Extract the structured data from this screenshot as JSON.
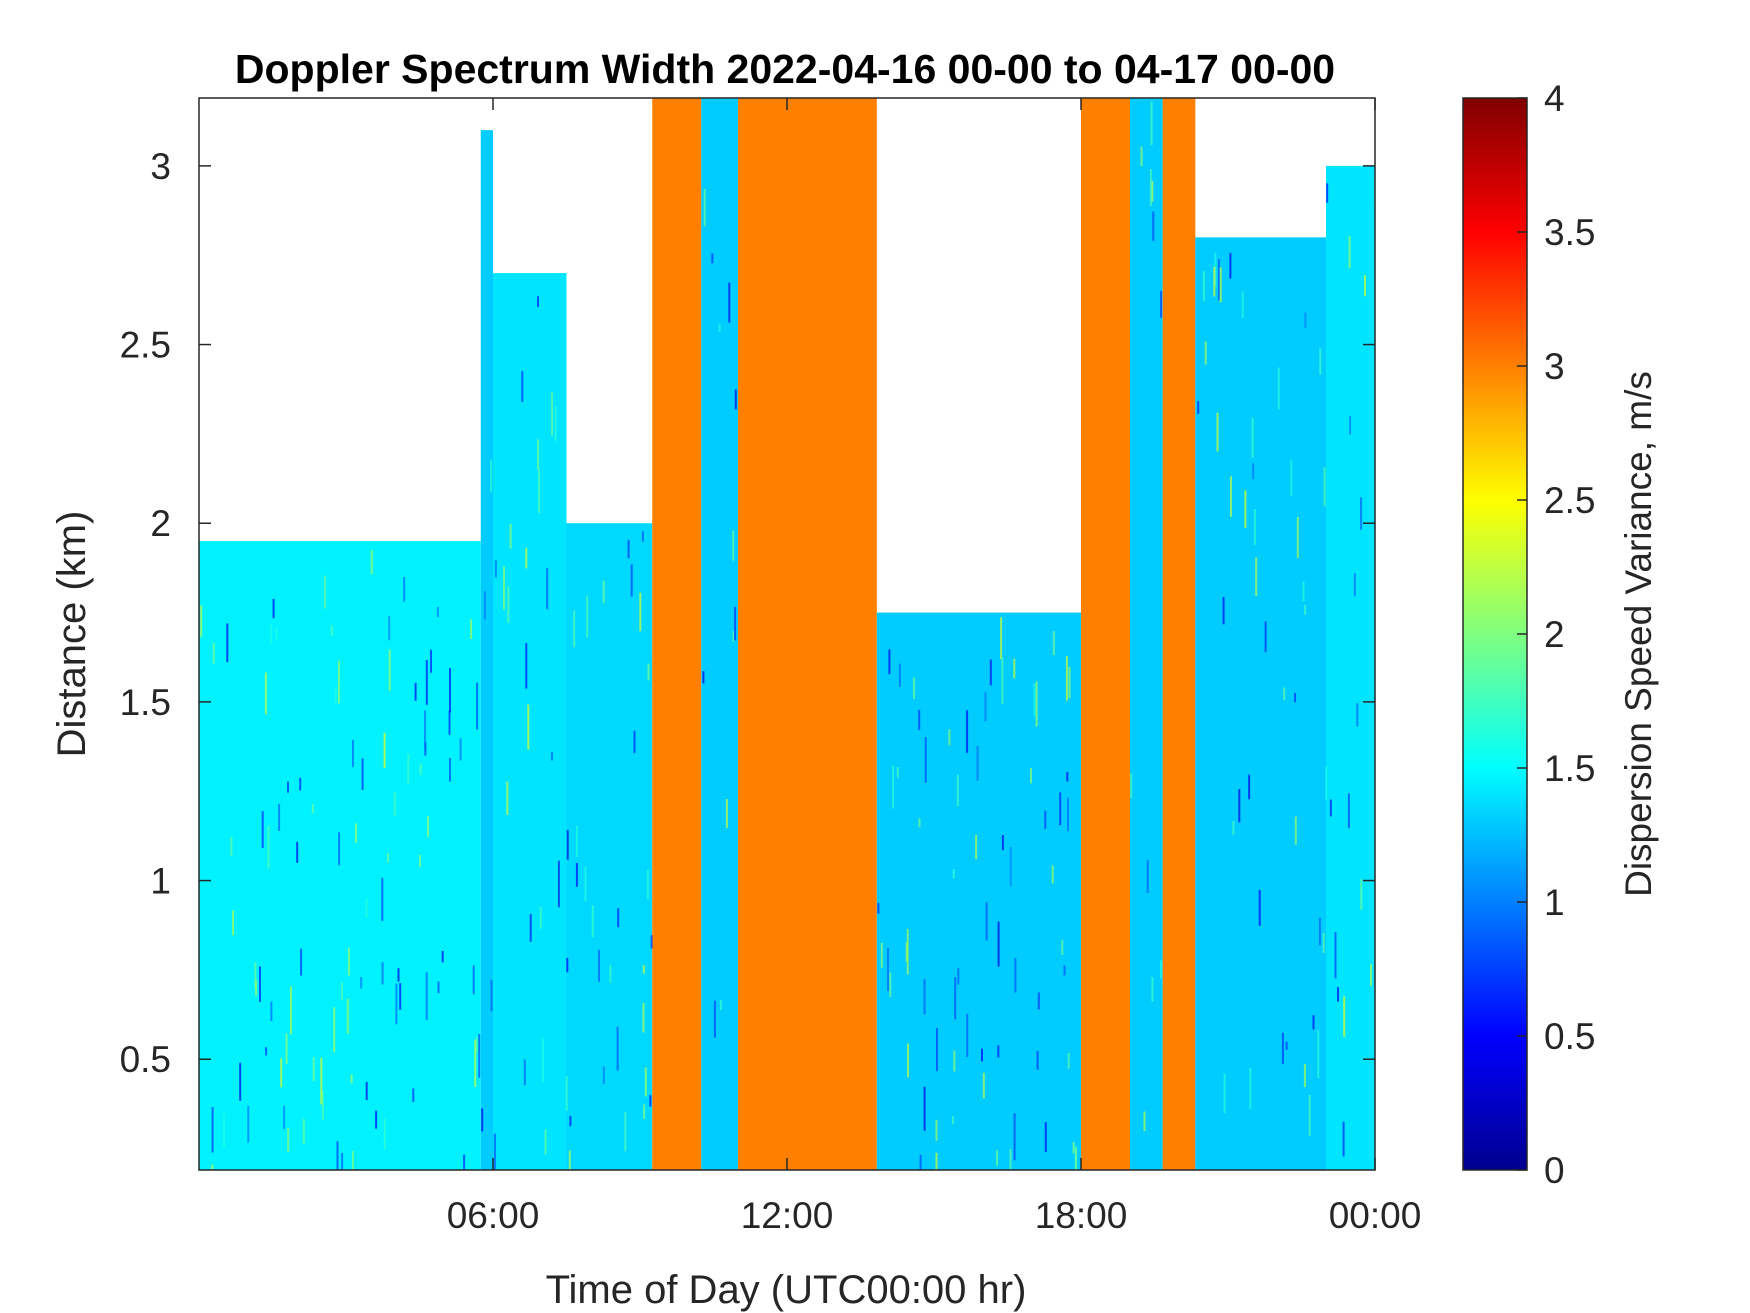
{
  "chart_data": {
    "type": "heatmap",
    "title": "Doppler Spectrum Width 2022-04-16 00-00 to 04-17 00-00",
    "xlabel": "Time of Day (UTC00:00 hr)",
    "ylabel": "Distance (km)",
    "colorbar_label": "Dispersion Speed Variance, m/s",
    "colormap": "jet",
    "clim": [
      0,
      4
    ],
    "xlim": [
      "2022-04-16 00:00",
      "2022-04-17 00:00"
    ],
    "ylim": [
      0.19,
      3.19
    ],
    "x_ticks": [
      {
        "time": "2022-04-16 06:00",
        "label": "06:00"
      },
      {
        "time": "2022-04-16 12:00",
        "label": "12:00"
      },
      {
        "time": "2022-04-16 18:00",
        "label": "18:00"
      },
      {
        "time": "2022-04-17 00:00",
        "label": "00:00"
      }
    ],
    "y_ticks": [
      {
        "value": 0.5,
        "label": "0.5"
      },
      {
        "value": 1,
        "label": "1"
      },
      {
        "value": 1.5,
        "label": "1.5"
      },
      {
        "value": 2,
        "label": "2"
      },
      {
        "value": 2.5,
        "label": "2.5"
      },
      {
        "value": 3,
        "label": "3"
      }
    ],
    "colorbar_ticks": [
      {
        "value": 0,
        "label": "0"
      },
      {
        "value": 0.5,
        "label": "0.5"
      },
      {
        "value": 1,
        "label": "1"
      },
      {
        "value": 1.5,
        "label": "1.5"
      },
      {
        "value": 2,
        "label": "2"
      },
      {
        "value": 2.5,
        "label": "2.5"
      },
      {
        "value": 3,
        "label": "3"
      },
      {
        "value": 3.5,
        "label": "3.5"
      },
      {
        "value": 4,
        "label": "4"
      }
    ],
    "grid": false,
    "regions": [
      {
        "start": "2022-04-16 00:00",
        "end": "2022-04-16 05:45",
        "top_km": 1.95,
        "value": 1.45
      },
      {
        "start": "2022-04-16 05:45",
        "end": "2022-04-16 06:00",
        "top_km": 3.1,
        "value": 1.3
      },
      {
        "start": "2022-04-16 06:00",
        "end": "2022-04-16 07:30",
        "top_km": 2.7,
        "value": 1.4
      },
      {
        "start": "2022-04-16 07:30",
        "end": "2022-04-16 09:15",
        "top_km": 2.0,
        "value": 1.35
      },
      {
        "start": "2022-04-16 09:15",
        "end": "2022-04-16 10:15",
        "top_km": 3.19,
        "value": 3.0
      },
      {
        "start": "2022-04-16 10:15",
        "end": "2022-04-16 11:00",
        "top_km": 3.19,
        "value": 1.3
      },
      {
        "start": "2022-04-16 11:00",
        "end": "2022-04-16 11:30",
        "top_km": 3.19,
        "value": 3.0
      },
      {
        "start": "2022-04-16 11:30",
        "end": "2022-04-16 13:30",
        "top_km": 3.19,
        "value": 3.0
      },
      {
        "start": "2022-04-16 13:30",
        "end": "2022-04-16 13:50",
        "top_km": 3.19,
        "value": 3.0
      },
      {
        "start": "2022-04-16 13:50",
        "end": "2022-04-16 18:00",
        "top_km": 1.75,
        "value": 1.3
      },
      {
        "start": "2022-04-16 18:00",
        "end": "2022-04-16 19:00",
        "top_km": 3.19,
        "value": 3.0
      },
      {
        "start": "2022-04-16 19:00",
        "end": "2022-04-16 19:40",
        "top_km": 3.19,
        "value": 1.3
      },
      {
        "start": "2022-04-16 19:40",
        "end": "2022-04-16 20:20",
        "top_km": 3.19,
        "value": 3.0
      },
      {
        "start": "2022-04-16 20:20",
        "end": "2022-04-16 23:00",
        "top_km": 2.8,
        "value": 1.3
      },
      {
        "start": "2022-04-16 23:00",
        "end": "2022-04-17 00:00",
        "top_km": 3.0,
        "value": 1.4
      }
    ]
  }
}
